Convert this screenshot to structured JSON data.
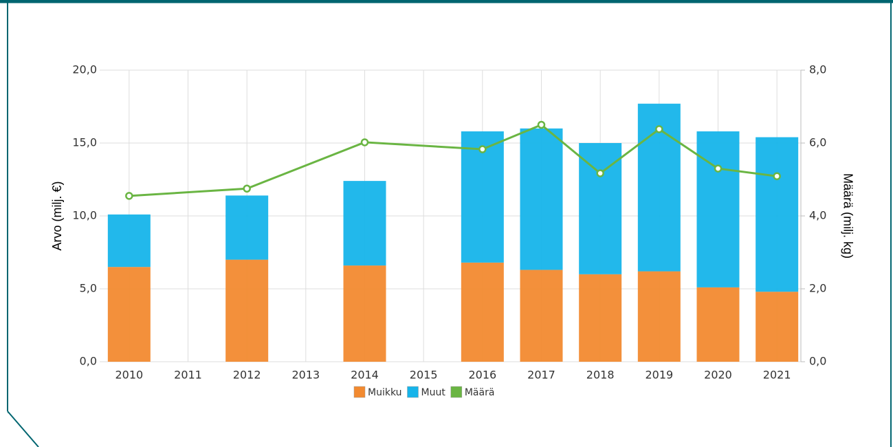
{
  "chart_data": {
    "type": "bar",
    "categories": [
      "2010",
      "2011",
      "2012",
      "2013",
      "2014",
      "2015",
      "2016",
      "2017",
      "2018",
      "2019",
      "2020",
      "2021"
    ],
    "stacked": true,
    "connect_nulls": true,
    "grid": true,
    "legend_position": "bottom",
    "ylabel": "Arvo (milj. €)",
    "y2label": "Määrä (milj. kg)",
    "ylim": [
      0,
      20
    ],
    "yticks": [
      {
        "value": 0,
        "label": "0,0"
      },
      {
        "value": 5,
        "label": "5,0"
      },
      {
        "value": 10,
        "label": "10,0"
      },
      {
        "value": 15,
        "label": "15,0"
      },
      {
        "value": 20,
        "label": "20,0"
      }
    ],
    "y2lim": [
      0,
      8
    ],
    "y2ticks": [
      {
        "value": 0,
        "label": "0,0"
      },
      {
        "value": 2,
        "label": "2,0"
      },
      {
        "value": 4,
        "label": "4,0"
      },
      {
        "value": 6,
        "label": "6,0"
      },
      {
        "value": 8,
        "label": "8,0"
      }
    ],
    "series": [
      {
        "name": "Muikku",
        "color": "#f28a30",
        "type": "bar",
        "values": [
          6.5,
          null,
          7.0,
          null,
          6.6,
          null,
          6.8,
          6.3,
          6.0,
          6.2,
          5.1,
          4.8
        ]
      },
      {
        "name": "Muut",
        "color": "#16b4ea",
        "type": "bar",
        "values": [
          3.6,
          null,
          4.4,
          null,
          5.8,
          null,
          9.0,
          9.7,
          9.0,
          11.5,
          10.7,
          10.6
        ]
      },
      {
        "name": "Määrä",
        "color": "#6ab543",
        "type": "line",
        "axis": "y2",
        "values": [
          4.55,
          null,
          4.75,
          null,
          6.02,
          null,
          5.83,
          6.5,
          5.17,
          6.38,
          5.3,
          5.09
        ]
      }
    ]
  }
}
